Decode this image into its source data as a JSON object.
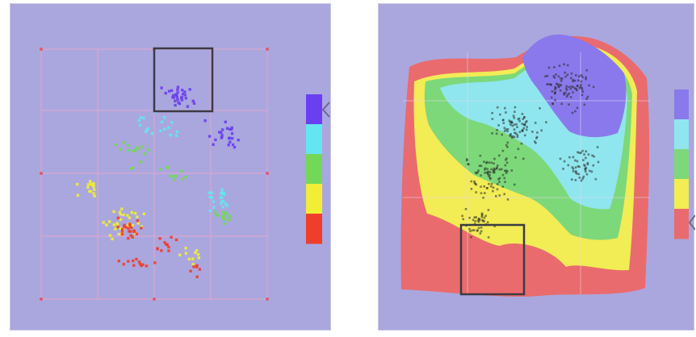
{
  "colors": {
    "background": "#aaa7de",
    "grid": "#d9a6cf",
    "grid_dot": "#e05a6e",
    "selection_box": "#3b3b44",
    "legend_handle": "#6f6b80",
    "purple": "#6a3ff0",
    "cyan": "#63e6f2",
    "green": "#72d85a",
    "yellow": "#f2ee33",
    "red": "#f03e2b",
    "region_red": "#ea6b6d",
    "region_yellow": "#f2ec55",
    "region_green": "#7dd87a",
    "region_cyan": "#8fe6ee",
    "region_purple": "#8a79ec"
  },
  "left_view": {
    "name": "scatter-view",
    "legend_levels": [
      "purple",
      "cyan",
      "green",
      "yellow",
      "red"
    ],
    "legend_handle_icon": "chevron-left-icon",
    "selection": "box"
  },
  "right_view": {
    "name": "landscape-view",
    "legend_levels": [
      "purple",
      "cyan",
      "green",
      "yellow",
      "red"
    ],
    "legend_handle_icon": "chevron-left-icon",
    "selection": "box"
  }
}
